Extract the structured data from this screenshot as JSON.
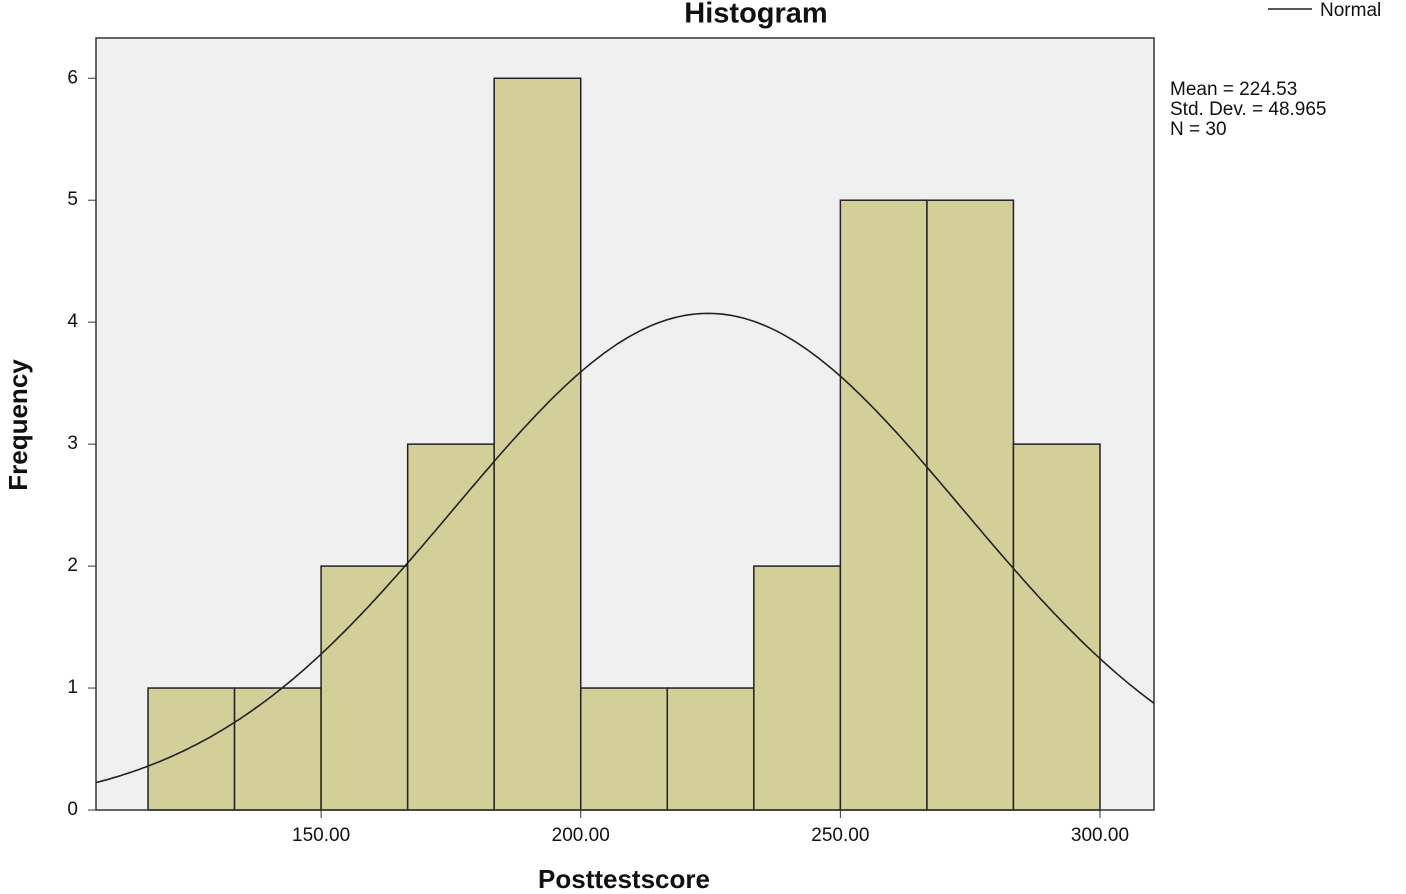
{
  "chart_data": {
    "type": "histogram",
    "title": "Histogram",
    "bins": [
      116.67,
      133.33,
      150,
      166.67,
      183.33,
      200,
      216.67,
      233.33,
      250,
      266.67,
      283.33,
      300
    ],
    "values": [
      1,
      1,
      2,
      3,
      6,
      1,
      1,
      2,
      5,
      5,
      3
    ],
    "color": "#d3cf98",
    "plot_background": "#f0f0f0",
    "x_label": "Posttestscore",
    "y_label": "Frequency",
    "xlim": [
      106.65,
      310.4
    ],
    "ylim": [
      0,
      6.33
    ],
    "xticks": [
      {
        "value": 150,
        "label": "150.00"
      },
      {
        "value": 200,
        "label": "200.00"
      },
      {
        "value": 250,
        "label": "250.00"
      },
      {
        "value": 300,
        "label": "300.00"
      }
    ],
    "yticks": [
      0,
      1,
      2,
      3,
      4,
      5,
      6
    ],
    "stats": [
      {
        "value": 224.53,
        "label": "Mean = 224.53"
      },
      {
        "value": 48.965,
        "label": "Std. Dev. = 48.965"
      },
      {
        "value": 30,
        "label": "N = 30"
      }
    ],
    "curve": {
      "name": "Normal",
      "color": "#222222"
    },
    "legend": "top-right"
  }
}
